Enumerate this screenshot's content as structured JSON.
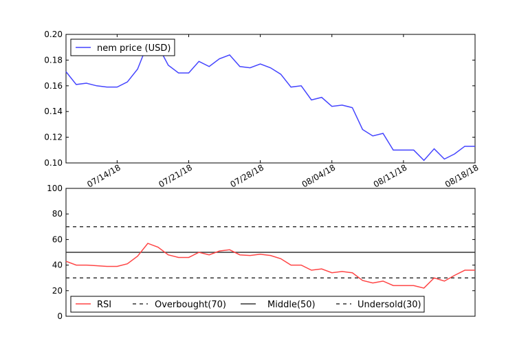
{
  "chart_data": [
    {
      "type": "line",
      "x_dates": [
        "2018-07-09",
        "2018-07-10",
        "2018-07-11",
        "2018-07-12",
        "2018-07-13",
        "2018-07-14",
        "2018-07-15",
        "2018-07-16",
        "2018-07-17",
        "2018-07-18",
        "2018-07-19",
        "2018-07-20",
        "2018-07-21",
        "2018-07-22",
        "2018-07-23",
        "2018-07-24",
        "2018-07-25",
        "2018-07-26",
        "2018-07-27",
        "2018-07-28",
        "2018-07-29",
        "2018-07-30",
        "2018-07-31",
        "2018-08-01",
        "2018-08-02",
        "2018-08-03",
        "2018-08-04",
        "2018-08-05",
        "2018-08-06",
        "2018-08-07",
        "2018-08-08",
        "2018-08-09",
        "2018-08-10",
        "2018-08-11",
        "2018-08-12",
        "2018-08-13",
        "2018-08-14",
        "2018-08-15",
        "2018-08-16",
        "2018-08-17",
        "2018-08-18"
      ],
      "series": [
        {
          "name": "nem price (USD)",
          "color": "#4444ff",
          "values": [
            0.171,
            0.161,
            0.162,
            0.16,
            0.159,
            0.159,
            0.163,
            0.173,
            0.193,
            0.191,
            0.176,
            0.17,
            0.17,
            0.179,
            0.175,
            0.181,
            0.184,
            0.175,
            0.174,
            0.177,
            0.174,
            0.169,
            0.159,
            0.16,
            0.149,
            0.151,
            0.144,
            0.145,
            0.143,
            0.126,
            0.121,
            0.123,
            0.11,
            0.11,
            0.11,
            0.102,
            0.111,
            0.103,
            0.107,
            0.113,
            0.113
          ]
        }
      ],
      "xticks": [
        "07/14/18",
        "07/21/18",
        "07/28/18",
        "08/04/18",
        "08/11/18",
        "08/18/18"
      ],
      "xtick_dates": [
        "2018-07-14",
        "2018-07-21",
        "2018-07-28",
        "2018-08-04",
        "2018-08-11",
        "2018-08-18"
      ],
      "yticks": [
        "0.10",
        "0.12",
        "0.14",
        "0.16",
        "0.18",
        "0.20"
      ],
      "ylim": [
        0.1,
        0.2
      ],
      "legend_position": "top-left",
      "grid": false
    },
    {
      "type": "line",
      "x_dates": [
        "2018-07-09",
        "2018-07-10",
        "2018-07-11",
        "2018-07-12",
        "2018-07-13",
        "2018-07-14",
        "2018-07-15",
        "2018-07-16",
        "2018-07-17",
        "2018-07-18",
        "2018-07-19",
        "2018-07-20",
        "2018-07-21",
        "2018-07-22",
        "2018-07-23",
        "2018-07-24",
        "2018-07-25",
        "2018-07-26",
        "2018-07-27",
        "2018-07-28",
        "2018-07-29",
        "2018-07-30",
        "2018-07-31",
        "2018-08-01",
        "2018-08-02",
        "2018-08-03",
        "2018-08-04",
        "2018-08-05",
        "2018-08-06",
        "2018-08-07",
        "2018-08-08",
        "2018-08-09",
        "2018-08-10",
        "2018-08-11",
        "2018-08-12",
        "2018-08-13",
        "2018-08-14",
        "2018-08-15",
        "2018-08-16",
        "2018-08-17",
        "2018-08-18"
      ],
      "series": [
        {
          "name": "RSI",
          "color": "#ff4444",
          "values": [
            43,
            40,
            40,
            39.5,
            39,
            39,
            41,
            47,
            57,
            54,
            48,
            46,
            46,
            50,
            48,
            51,
            52,
            48,
            47.5,
            48.5,
            47.5,
            45,
            40,
            40,
            36,
            37,
            34,
            35,
            34,
            28,
            26,
            27.5,
            24,
            24,
            24,
            22,
            30,
            27.5,
            32,
            36,
            36
          ]
        }
      ],
      "hlines": [
        {
          "name": "Overbought(70)",
          "y": 70,
          "style": "dashed",
          "color": "#333333"
        },
        {
          "name": "Middle(50)",
          "y": 50,
          "style": "solid",
          "color": "#333333"
        },
        {
          "name": "Undersold(30)",
          "y": 30,
          "style": "dashed",
          "color": "#333333"
        }
      ],
      "yticks": [
        "0",
        "20",
        "40",
        "60",
        "80",
        "100"
      ],
      "ylim": [
        0,
        100
      ],
      "legend_position": "bottom",
      "grid": false
    }
  ]
}
